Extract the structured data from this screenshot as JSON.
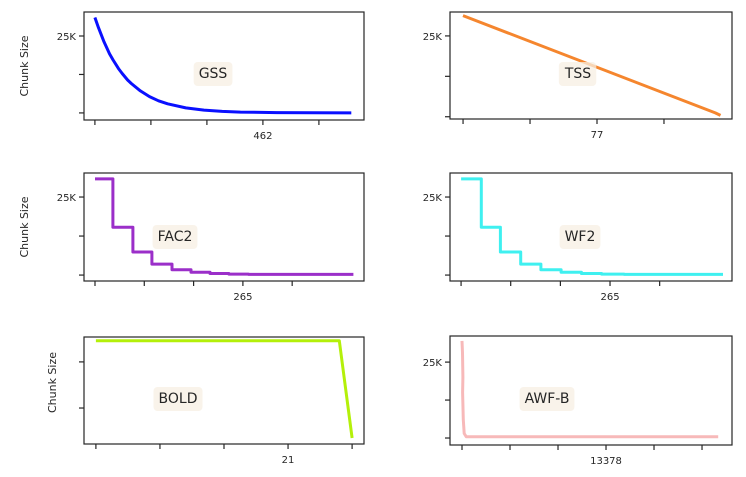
{
  "chart_data": [
    {
      "type": "line",
      "title": "GSS",
      "ylabel": "Chunk Size",
      "color": "#0a10ff",
      "xlim": [
        -30,
        740
      ],
      "ylim": [
        -2300,
        32800
      ],
      "xticks": [
        0,
        154,
        308,
        462,
        616
      ],
      "xtick_labels": [
        "",
        "",
        "",
        "462",
        ""
      ],
      "yticks": [
        0,
        12500,
        25000
      ],
      "ytick_labels": [
        "",
        "",
        "25K"
      ],
      "points": [
        [
          0,
          31000
        ],
        [
          10,
          27700
        ],
        [
          25,
          23100
        ],
        [
          40,
          19200
        ],
        [
          50,
          17200
        ],
        [
          65,
          14400
        ],
        [
          75,
          12800
        ],
        [
          90,
          10700
        ],
        [
          100,
          9550
        ],
        [
          125,
          7150
        ],
        [
          150,
          5300
        ],
        [
          175,
          3950
        ],
        [
          200,
          2950
        ],
        [
          250,
          1630
        ],
        [
          300,
          910
        ],
        [
          350,
          500
        ],
        [
          400,
          280
        ],
        [
          500,
          90
        ],
        [
          600,
          30
        ],
        [
          705,
          10
        ]
      ]
    },
    {
      "type": "line",
      "title": "TSS",
      "ylabel": "",
      "color": "#f5862e",
      "xlim": [
        -7.5,
        154.6
      ],
      "ylim": [
        -700,
        32400
      ],
      "xticks": [
        0,
        38.5,
        77,
        115.5
      ],
      "xtick_labels": [
        "",
        "",
        "77",
        ""
      ],
      "yticks": [
        0,
        12500,
        25000
      ],
      "ytick_labels": [
        "",
        "",
        "25K"
      ],
      "points": [
        [
          0,
          31300
        ],
        [
          145,
          1200
        ],
        [
          148,
          400
        ]
      ]
    },
    {
      "type": "line",
      "title": "FAC2",
      "ylabel": "Chunk Size",
      "color": "#9b2fc9",
      "xlim": [
        -19.7,
        482
      ],
      "ylim": [
        -1900,
        32700
      ],
      "xticks": [
        0,
        88.3,
        176.7,
        265,
        353.3
      ],
      "xtick_labels": [
        "",
        "",
        "",
        "265",
        ""
      ],
      "yticks": [
        0,
        12500,
        25000
      ],
      "ytick_labels": [
        "",
        "",
        "25K"
      ],
      "points": [
        [
          0,
          30800
        ],
        [
          32,
          30800
        ],
        [
          32,
          15300
        ],
        [
          68,
          15300
        ],
        [
          68,
          7400
        ],
        [
          102,
          7400
        ],
        [
          102,
          3500
        ],
        [
          138,
          3500
        ],
        [
          138,
          1700
        ],
        [
          172,
          1700
        ],
        [
          172,
          900
        ],
        [
          206,
          900
        ],
        [
          206,
          500
        ],
        [
          240,
          500
        ],
        [
          240,
          300
        ],
        [
          275,
          300
        ],
        [
          275,
          200
        ],
        [
          463,
          200
        ]
      ]
    },
    {
      "type": "line",
      "title": "WF2",
      "ylabel": "",
      "color": "#3ff0f0",
      "xlim": [
        -19.7,
        482
      ],
      "ylim": [
        -1900,
        32700
      ],
      "xticks": [
        0,
        88.3,
        176.7,
        265,
        353.3
      ],
      "xtick_labels": [
        "",
        "",
        "",
        "265",
        ""
      ],
      "yticks": [
        0,
        12500,
        25000
      ],
      "ytick_labels": [
        "",
        "",
        "25K"
      ],
      "points": [
        [
          0,
          30800
        ],
        [
          36,
          30800
        ],
        [
          36,
          15300
        ],
        [
          70,
          15300
        ],
        [
          70,
          7400
        ],
        [
          106,
          7400
        ],
        [
          106,
          3500
        ],
        [
          142,
          3500
        ],
        [
          142,
          1700
        ],
        [
          178,
          1700
        ],
        [
          178,
          900
        ],
        [
          214,
          900
        ],
        [
          214,
          500
        ],
        [
          250,
          500
        ],
        [
          250,
          300
        ],
        [
          290,
          300
        ],
        [
          290,
          200
        ],
        [
          466,
          200
        ]
      ]
    },
    {
      "type": "line",
      "title": "BOLD",
      "ylabel": "Chunk Size",
      "color": "#b4f00a",
      "xlim": [
        -1.3,
        29.3
      ],
      "ylim": [
        2200,
        25400
      ],
      "xticks": [
        0,
        7,
        14,
        21,
        28
      ],
      "xtick_labels": [
        "",
        "",
        "",
        "21",
        ""
      ],
      "yticks": [
        10000,
        20000
      ],
      "ytick_labels": [
        "",
        ""
      ],
      "points": [
        [
          0,
          24600
        ],
        [
          26.6,
          24600
        ],
        [
          28,
          3500
        ]
      ]
    },
    {
      "type": "line",
      "title": "AWF-B",
      "ylabel": "",
      "color": "#f7b9b9",
      "xlim": [
        -1115,
        25082
      ],
      "ylim": [
        -2300,
        33600
      ],
      "xticks": [
        0,
        4459,
        8919,
        13378,
        17837,
        22297
      ],
      "xtick_labels": [
        "",
        "",
        "",
        "13378",
        "",
        ""
      ],
      "yticks": [
        0,
        12500,
        25000
      ],
      "ytick_labels": [
        "",
        "",
        "25K"
      ],
      "points": [
        [
          0,
          32000
        ],
        [
          50,
          28000
        ],
        [
          80,
          20000
        ],
        [
          60,
          15000
        ],
        [
          120,
          6000
        ],
        [
          200,
          1500
        ],
        [
          400,
          400
        ],
        [
          23800,
          400
        ]
      ]
    }
  ]
}
